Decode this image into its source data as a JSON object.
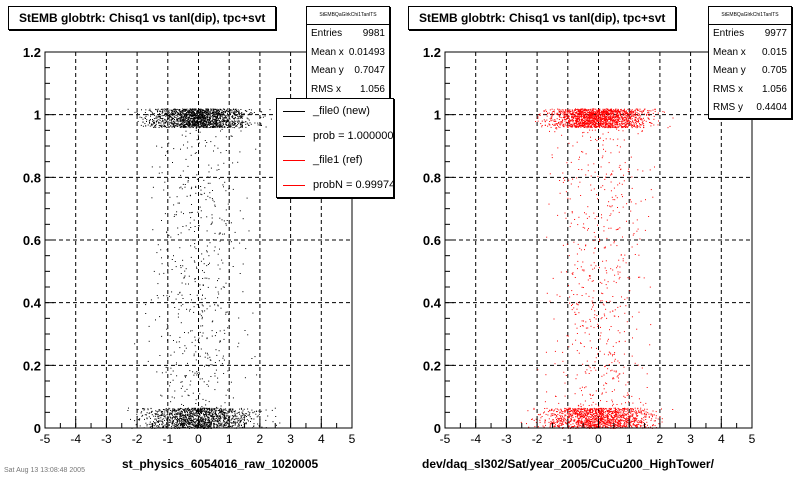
{
  "panels": [
    {
      "title": "StEMB globtrk: Chisq1 vs tanl(dip), tpc+svt",
      "xtitle": "st_physics_6054016_raw_1020005",
      "marker_color": "#000000",
      "stats": {
        "name": "StEMBQaGlrkChi1TanlTS",
        "rows": [
          {
            "label": "Entries",
            "value": "9981"
          },
          {
            "label": "Mean x",
            "value": "0.01493"
          },
          {
            "label": "Mean y",
            "value": "0.7047"
          },
          {
            "label": "RMS x",
            "value": "1.056"
          }
        ]
      },
      "legend": [
        {
          "label": "_file0 (new)",
          "color": "#000000"
        },
        {
          "label": "prob = 1.000000",
          "color": "#000000"
        },
        {
          "label": "_file1 (ref)",
          "color": "#ff0000"
        },
        {
          "label": "probN = 0.999743",
          "color": "#ff0000"
        }
      ]
    },
    {
      "title": "StEMB globtrk: Chisq1 vs tanl(dip), tpc+svt",
      "xtitle": "dev/daq_sl302/Sat/year_2005/CuCu200_HighTower/",
      "marker_color": "#ff0000",
      "stats": {
        "name": "StEMBQaGlrkChi1TanlTS",
        "rows": [
          {
            "label": "Entries",
            "value": "9977"
          },
          {
            "label": "Mean x",
            "value": "0.015"
          },
          {
            "label": "Mean y",
            "value": "0.705"
          },
          {
            "label": "RMS x",
            "value": "1.056"
          },
          {
            "label": "RMS y",
            "value": "0.4404"
          }
        ]
      }
    }
  ],
  "footnote": "Sat Aug 13 13:08:48 2005",
  "chart_data": [
    {
      "type": "scatter",
      "title": "StEMB globtrk: Chisq1 vs tanl(dip), tpc+svt",
      "xlabel": "st_physics_6054016_raw_1020005",
      "ylabel": "",
      "xlim": [
        -5,
        5
      ],
      "ylim": [
        0,
        1.2
      ],
      "xticks": [
        -5,
        -4,
        -3,
        -2,
        -1,
        0,
        1,
        2,
        3,
        4,
        5
      ],
      "yticks": [
        0,
        0.2,
        0.4,
        0.6,
        0.8,
        1,
        1.2
      ],
      "grid": true,
      "legend_position": "top-right",
      "series": [
        {
          "name": "_file0 (new)",
          "color": "#000000",
          "entries": 9981,
          "bands": [
            {
              "x_range": [
                -2.6,
                2.6
              ],
              "y_range": [
                0.96,
                1.02
              ],
              "count": 1600
            },
            {
              "x_range": [
                -2.9,
                2.9
              ],
              "y_range": [
                0.0,
                0.065
              ],
              "count": 1300
            },
            {
              "x_range": [
                -2.5,
                2.5
              ],
              "y_range": [
                0.06,
                0.96
              ],
              "count": 520
            }
          ]
        }
      ]
    },
    {
      "type": "scatter",
      "title": "StEMB globtrk: Chisq1 vs tanl(dip), tpc+svt",
      "xlabel": "dev/daq_sl302/Sat/year_2005/CuCu200_HighTower/",
      "ylabel": "",
      "xlim": [
        -5,
        5
      ],
      "ylim": [
        0,
        1.2
      ],
      "xticks": [
        -5,
        -4,
        -3,
        -2,
        -1,
        0,
        1,
        2,
        3,
        4,
        5
      ],
      "yticks": [
        0,
        0.2,
        0.4,
        0.6,
        0.8,
        1,
        1.2
      ],
      "grid": true,
      "series": [
        {
          "name": "_file1 (ref)",
          "color": "#ff0000",
          "entries": 9977,
          "bands": [
            {
              "x_range": [
                -2.6,
                2.6
              ],
              "y_range": [
                0.96,
                1.02
              ],
              "count": 1700
            },
            {
              "x_range": [
                -2.9,
                2.9
              ],
              "y_range": [
                0.0,
                0.065
              ],
              "count": 1400
            },
            {
              "x_range": [
                -2.5,
                2.5
              ],
              "y_range": [
                0.06,
                0.96
              ],
              "count": 560
            }
          ]
        }
      ]
    }
  ]
}
